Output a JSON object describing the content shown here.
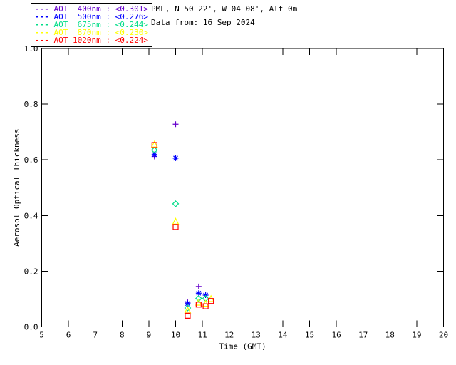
{
  "header": {
    "line1": "PML, N 50 22', W 04 08', Alt 0m",
    "line2": "Data from: 16 Sep 2024"
  },
  "legend": {
    "dash": "---",
    "entries": [
      {
        "label": "AOT  400nm : <0.301>",
        "color": "#6600CC"
      },
      {
        "label": "AOT  500nm : <0.276>",
        "color": "#0000FF"
      },
      {
        "label": "AOT  675nm : <0.244>",
        "color": "#00DD88"
      },
      {
        "label": "AOT  870nm : <0.230>",
        "color": "#FFFF00"
      },
      {
        "label": "AOT 1020nm : <0.224>",
        "color": "#FF0000"
      }
    ]
  },
  "chart_data": {
    "type": "scatter",
    "title": "",
    "xlabel": "Time (GMT)",
    "ylabel": "Aerosol Optical Thickness",
    "xlim": [
      5,
      20
    ],
    "ylim": [
      0.0,
      1.0
    ],
    "x_ticks": [
      5,
      6,
      7,
      8,
      9,
      10,
      11,
      12,
      13,
      14,
      15,
      16,
      17,
      18,
      19,
      20
    ],
    "y_ticks": [
      0.0,
      0.2,
      0.4,
      0.6,
      0.8,
      1.0
    ],
    "grid": false,
    "legend_position": "outside-top-left",
    "frame_color": "#000000",
    "series": [
      {
        "name": "AOT 400nm",
        "mean_label": "<0.301>",
        "color": "#6600CC",
        "marker": "plus",
        "points": [
          [
            9.21,
            0.612
          ],
          [
            10.0,
            0.728
          ],
          [
            10.45,
            0.088
          ],
          [
            10.86,
            0.145
          ]
        ]
      },
      {
        "name": "AOT 500nm",
        "mean_label": "<0.276>",
        "color": "#0000FF",
        "marker": "asterisk",
        "points": [
          [
            9.21,
            0.619
          ],
          [
            10.0,
            0.606
          ],
          [
            10.45,
            0.084
          ],
          [
            10.86,
            0.121
          ],
          [
            11.12,
            0.114
          ]
        ]
      },
      {
        "name": "AOT 675nm",
        "mean_label": "<0.244>",
        "color": "#00DD88",
        "marker": "diamond",
        "points": [
          [
            9.21,
            0.635
          ],
          [
            10.0,
            0.442
          ],
          [
            10.45,
            0.068
          ],
          [
            10.86,
            0.102
          ],
          [
            11.12,
            0.102
          ]
        ]
      },
      {
        "name": "AOT 870nm",
        "mean_label": "<0.230>",
        "color": "#FFFF00",
        "marker": "triangle",
        "points": [
          [
            9.21,
            0.655
          ],
          [
            10.0,
            0.378
          ],
          [
            10.45,
            0.059
          ],
          [
            10.86,
            0.087
          ],
          [
            11.12,
            0.083
          ],
          [
            11.32,
            0.1
          ]
        ]
      },
      {
        "name": "AOT 1020nm",
        "mean_label": "<0.224>",
        "color": "#FF0000",
        "marker": "square",
        "points": [
          [
            9.21,
            0.653
          ],
          [
            10.0,
            0.359
          ],
          [
            10.45,
            0.04
          ],
          [
            10.86,
            0.08
          ],
          [
            11.12,
            0.074
          ],
          [
            11.32,
            0.093
          ]
        ]
      }
    ]
  }
}
